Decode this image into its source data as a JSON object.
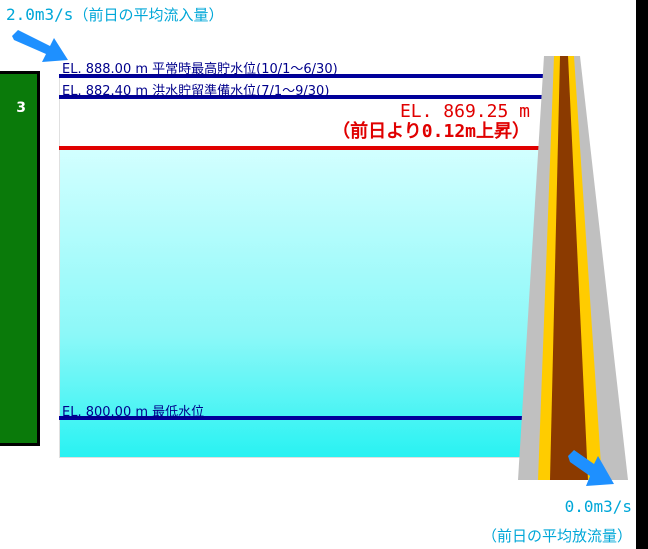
{
  "left_panel": {
    "text": "3",
    "color": "#0a7a0a"
  },
  "inflow": {
    "value": "2.0m3/s",
    "caption": "（前日の平均流入量）",
    "icon": "arrow-right-down-icon",
    "color": "#1e90ff"
  },
  "levels": {
    "normal_max": "EL. 888.00 m 平常時最高貯水位(10/1～6/30)",
    "flood_reserve": "EL. 882.40 m 洪水貯留準備水位(7/1～9/30)",
    "minimum": "EL. 800.00 m  最低水位"
  },
  "current": {
    "level": "EL. 869.25  m",
    "change": "（前日より0.12m上昇）",
    "color": "#e00000"
  },
  "outflow": {
    "value": "0.0m3/s",
    "caption": "（前日の平均放流量）",
    "icon": "arrow-right-down-icon"
  },
  "colors": {
    "level_line": "#00009a",
    "water_top": "#d2ffff",
    "water_bottom": "#28f2f2",
    "dam_concrete": "#c0c0c0",
    "dam_core": "#8b3a00",
    "dam_filter": "#ffcc00"
  }
}
